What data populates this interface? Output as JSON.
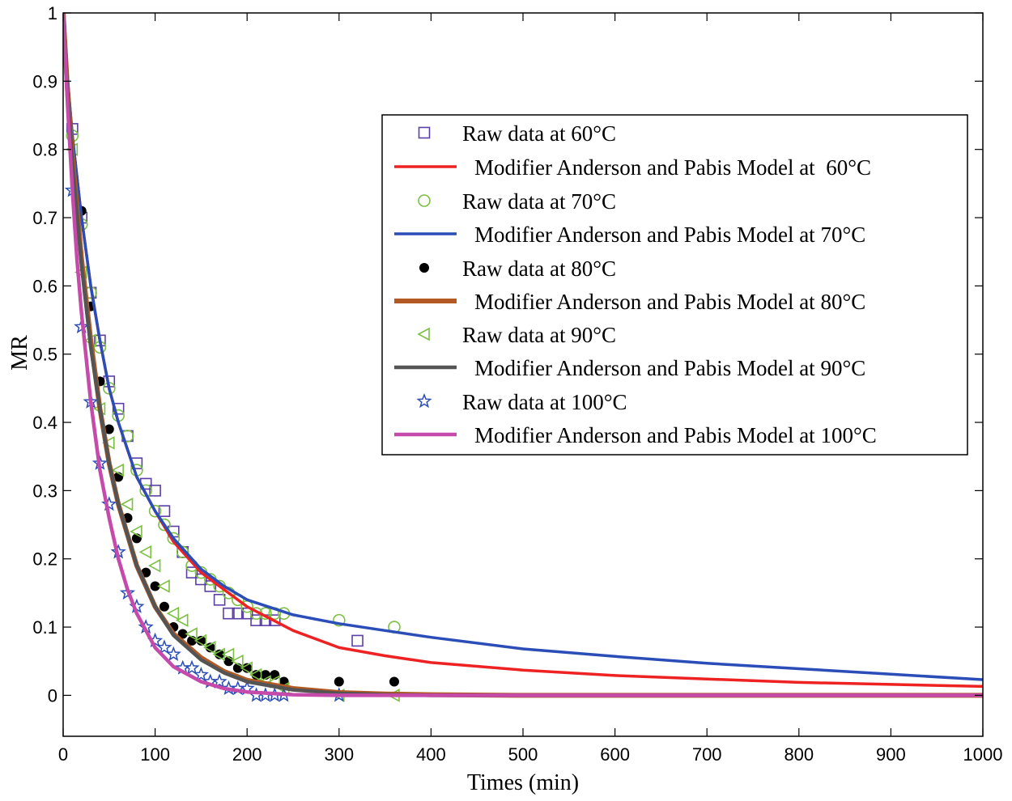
{
  "chart_data": {
    "type": "scatter",
    "title": "",
    "xlabel": "Times (min)",
    "ylabel": "MR",
    "xlim": [
      0,
      1000
    ],
    "ylim": [
      -0.06,
      1.0
    ],
    "x_ticks": [
      0,
      100,
      200,
      300,
      400,
      500,
      600,
      700,
      800,
      900,
      1000
    ],
    "y_ticks": [
      0,
      0.1,
      0.2,
      0.3,
      0.4,
      0.5,
      0.6,
      0.7,
      0.8,
      0.9,
      1
    ],
    "x_tick_labels": [
      "0",
      "100",
      "200",
      "300",
      "400",
      "500",
      "600",
      "700",
      "800",
      "900",
      "1000"
    ],
    "y_tick_labels": [
      "0",
      "0.1",
      "0.2",
      "0.3",
      "0.4",
      "0.5",
      "0.6",
      "0.7",
      "0.8",
      "0.9",
      "1"
    ],
    "grid": false,
    "legend_position": "top-right",
    "series": [
      {
        "name": "Raw data at 60°C",
        "kind": "points",
        "marker": "square",
        "color": "#5b3fa8",
        "x": [
          10,
          20,
          30,
          40,
          50,
          60,
          70,
          80,
          90,
          100,
          110,
          120,
          130,
          140,
          150,
          160,
          170,
          180,
          190,
          200,
          210,
          220,
          230,
          320
        ],
        "y": [
          0.83,
          0.7,
          0.59,
          0.52,
          0.46,
          0.42,
          0.38,
          0.34,
          0.31,
          0.3,
          0.27,
          0.24,
          0.21,
          0.18,
          0.17,
          0.16,
          0.14,
          0.12,
          0.12,
          0.12,
          0.11,
          0.11,
          0.11,
          0.08
        ]
      },
      {
        "name": "Modifier Anderson and Pabis Model at  60°C",
        "kind": "line",
        "color": "#ee2222",
        "width": 3.5,
        "x": [
          0,
          5,
          10,
          20,
          30,
          40,
          50,
          60,
          80,
          100,
          120,
          150,
          175,
          200,
          250,
          300,
          350,
          400,
          500,
          600,
          700,
          800,
          900,
          1000
        ],
        "y": [
          1.0,
          0.9,
          0.82,
          0.7,
          0.6,
          0.52,
          0.45,
          0.4,
          0.32,
          0.27,
          0.225,
          0.18,
          0.155,
          0.13,
          0.095,
          0.07,
          0.058,
          0.048,
          0.037,
          0.029,
          0.024,
          0.019,
          0.016,
          0.013
        ]
      },
      {
        "name": "Raw data at 70°C",
        "kind": "points",
        "marker": "circle",
        "color": "#7bc043",
        "x": [
          10,
          20,
          30,
          40,
          50,
          60,
          70,
          80,
          90,
          100,
          110,
          120,
          130,
          140,
          150,
          160,
          170,
          180,
          190,
          200,
          210,
          220,
          230,
          240,
          300,
          360
        ],
        "y": [
          0.82,
          0.69,
          0.59,
          0.51,
          0.45,
          0.41,
          0.38,
          0.33,
          0.3,
          0.27,
          0.25,
          0.23,
          0.21,
          0.19,
          0.18,
          0.17,
          0.16,
          0.15,
          0.14,
          0.13,
          0.12,
          0.12,
          0.12,
          0.12,
          0.11,
          0.1
        ]
      },
      {
        "name": "Modifier Anderson and Pabis Model at 70°C",
        "kind": "line",
        "color": "#2a4db8",
        "width": 3.5,
        "x": [
          0,
          5,
          10,
          20,
          30,
          40,
          50,
          60,
          80,
          100,
          120,
          150,
          175,
          200,
          250,
          300,
          350,
          400,
          500,
          600,
          700,
          800,
          900,
          1000
        ],
        "y": [
          1.0,
          0.9,
          0.82,
          0.7,
          0.6,
          0.52,
          0.45,
          0.4,
          0.32,
          0.27,
          0.23,
          0.185,
          0.16,
          0.14,
          0.118,
          0.105,
          0.095,
          0.085,
          0.068,
          0.057,
          0.047,
          0.039,
          0.031,
          0.023
        ]
      },
      {
        "name": "Raw data at 80°C",
        "kind": "points",
        "marker": "dot",
        "color": "#000000",
        "x": [
          20,
          30,
          40,
          50,
          60,
          70,
          80,
          90,
          100,
          110,
          120,
          130,
          140,
          150,
          160,
          170,
          180,
          190,
          200,
          210,
          220,
          230,
          240,
          300,
          360
        ],
        "y": [
          0.71,
          0.57,
          0.46,
          0.39,
          0.32,
          0.26,
          0.23,
          0.18,
          0.16,
          0.13,
          0.1,
          0.09,
          0.08,
          0.08,
          0.07,
          0.06,
          0.05,
          0.04,
          0.04,
          0.03,
          0.03,
          0.03,
          0.02,
          0.02,
          0.02
        ]
      },
      {
        "name": "Modifier Anderson and Pabis Model at 80°C",
        "kind": "line",
        "color": "#b35a24",
        "width": 6,
        "x": [
          0,
          5,
          10,
          20,
          30,
          40,
          50,
          60,
          80,
          100,
          120,
          150,
          175,
          200,
          250,
          300,
          350,
          400,
          500,
          600,
          700,
          800,
          900,
          1000
        ],
        "y": [
          1.0,
          0.88,
          0.79,
          0.64,
          0.52,
          0.42,
          0.34,
          0.28,
          0.19,
          0.13,
          0.09,
          0.055,
          0.035,
          0.022,
          0.01,
          0.004,
          0.002,
          0.001,
          0.0,
          0.0,
          0.0,
          0.0,
          0.0,
          0.0
        ]
      },
      {
        "name": "Raw data at 90°C",
        "kind": "points",
        "marker": "triangle-left",
        "color": "#7bc043",
        "x": [
          10,
          20,
          30,
          40,
          50,
          60,
          70,
          80,
          90,
          100,
          110,
          120,
          130,
          140,
          150,
          160,
          170,
          180,
          190,
          200,
          210,
          220,
          230,
          240,
          300,
          360
        ],
        "y": [
          0.8,
          0.62,
          0.52,
          0.42,
          0.37,
          0.33,
          0.28,
          0.24,
          0.21,
          0.19,
          0.16,
          0.12,
          0.11,
          0.09,
          0.08,
          0.07,
          0.06,
          0.06,
          0.05,
          0.04,
          0.03,
          0.02,
          0.02,
          0.01,
          0.0,
          0.0
        ]
      },
      {
        "name": "Modifier Anderson and Pabis Model at 90°C",
        "kind": "line",
        "color": "#545454",
        "width": 4.5,
        "x": [
          0,
          5,
          10,
          20,
          30,
          40,
          50,
          60,
          80,
          100,
          120,
          150,
          175,
          200,
          250,
          300,
          350,
          400,
          500,
          600,
          700,
          800,
          900,
          1000
        ],
        "y": [
          1.0,
          0.88,
          0.78,
          0.63,
          0.51,
          0.42,
          0.34,
          0.28,
          0.19,
          0.13,
          0.088,
          0.052,
          0.033,
          0.02,
          0.008,
          0.003,
          0.001,
          0.0,
          0.0,
          0.0,
          0.0,
          0.0,
          0.0,
          0.0
        ]
      },
      {
        "name": "Raw data at 100°C",
        "kind": "points",
        "marker": "star",
        "color": "#2a4db8",
        "x": [
          10,
          20,
          30,
          40,
          50,
          60,
          70,
          80,
          90,
          100,
          110,
          120,
          130,
          140,
          150,
          160,
          170,
          180,
          190,
          200,
          210,
          220,
          230,
          240,
          300
        ],
        "y": [
          0.74,
          0.54,
          0.43,
          0.34,
          0.28,
          0.21,
          0.15,
          0.13,
          0.1,
          0.08,
          0.07,
          0.06,
          0.04,
          0.04,
          0.03,
          0.02,
          0.02,
          0.01,
          0.01,
          0.01,
          0.0,
          0.0,
          0.0,
          0.0,
          0.0
        ]
      },
      {
        "name": "Modifier Anderson and Pabis Model at 100°C",
        "kind": "line",
        "color": "#c54aa9",
        "width": 4.5,
        "x": [
          0,
          5,
          10,
          15,
          20,
          30,
          40,
          50,
          60,
          70,
          80,
          100,
          120,
          150,
          175,
          200,
          250,
          300,
          400,
          500,
          600,
          700,
          800,
          900,
          1000
        ],
        "y": [
          1.0,
          0.86,
          0.74,
          0.64,
          0.56,
          0.43,
          0.33,
          0.26,
          0.2,
          0.155,
          0.12,
          0.07,
          0.042,
          0.02,
          0.01,
          0.005,
          0.001,
          0.0,
          0.0,
          0.0,
          0.0,
          0.0,
          0.0,
          0.0,
          0.0
        ]
      }
    ]
  }
}
